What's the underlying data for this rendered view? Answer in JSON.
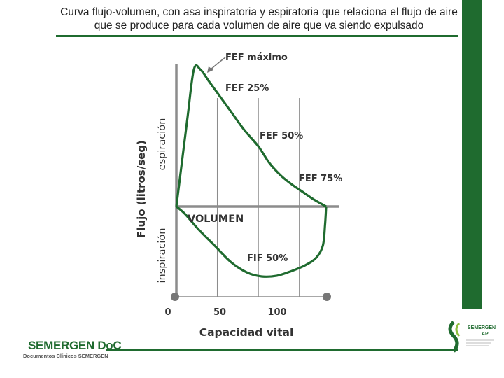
{
  "slide": {
    "title": "Curva flujo-volumen, con asa inspiratoria y espiratoria que relaciona el flujo de aire que se produce para cada volumen de aire que va siendo expulsado"
  },
  "brand": {
    "name": "SEMERGEN DoC",
    "subtitle": "Documentos Clínicos SEMERGEN",
    "logo_name": "SEMERGEN",
    "logo_sub": "AP"
  },
  "colors": {
    "curve": "#1f6b2f",
    "axis": "#8c8c8c",
    "accent": "#1f6b2f",
    "label": "#444444"
  },
  "chart_data": {
    "type": "line",
    "title": "",
    "xlabel": "Capacidad vital",
    "ylabel": "Flujo (litros/seg)",
    "ylabel_upper": "espiración",
    "ylabel_lower": "inspiración",
    "x_axis_label": "VOLUMEN",
    "xlim": [
      0,
      140
    ],
    "ylim": [
      -5,
      10
    ],
    "xticks": [
      {
        "value": 0,
        "label": "0"
      },
      {
        "value": 50,
        "label": "50"
      },
      {
        "value": 100,
        "label": "100"
      }
    ],
    "gridlines_x": [
      37.5,
      75,
      112.5
    ],
    "expiration": {
      "x": [
        0,
        10,
        16,
        22,
        30,
        40,
        50,
        62,
        75,
        85,
        95,
        105,
        115,
        125,
        137
      ],
      "y": [
        0,
        5.8,
        9.1,
        9.1,
        8.3,
        7.3,
        6.3,
        5.1,
        4.0,
        2.9,
        2.1,
        1.5,
        1.0,
        0.5,
        0
      ]
    },
    "inspiration": {
      "x": [
        137,
        136,
        134,
        128,
        118,
        105,
        92,
        78,
        65,
        50,
        35,
        20,
        8,
        0
      ],
      "y": [
        0,
        -1.2,
        -2.6,
        -3.4,
        -3.9,
        -4.3,
        -4.6,
        -4.65,
        -4.4,
        -3.7,
        -2.6,
        -1.5,
        -0.5,
        0
      ]
    },
    "annotations": [
      {
        "text": "FEF máximo",
        "x": 45,
        "y": 10.1
      },
      {
        "text": "FEF 25%",
        "x": 45,
        "y": 7.6
      },
      {
        "text": "FEF 50%",
        "x": 75,
        "y": 4.7
      },
      {
        "text": "FEF 75%",
        "x": 112,
        "y": 1.9
      },
      {
        "text": "FIF 50%",
        "x": 65,
        "y": -3.8
      }
    ],
    "endpoints": [
      0,
      137
    ]
  }
}
